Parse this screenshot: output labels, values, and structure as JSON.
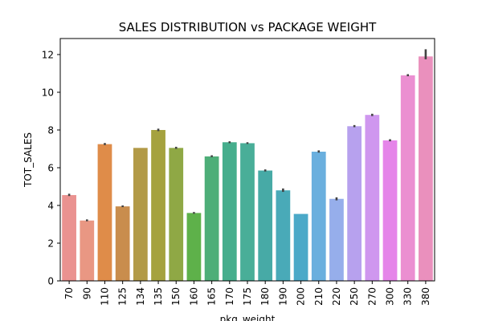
{
  "chart_data": {
    "type": "bar",
    "title": "SALES DISTRIBUTION vs PACKAGE WEIGHT",
    "xlabel": "pkg_weight",
    "ylabel": "TOT_SALES",
    "ylim": [
      0,
      12.85
    ],
    "yticks": [
      0,
      2,
      4,
      6,
      8,
      10,
      12
    ],
    "grid": false,
    "categories": [
      "70",
      "90",
      "110",
      "125",
      "134",
      "135",
      "150",
      "160",
      "165",
      "170",
      "175",
      "180",
      "190",
      "200",
      "210",
      "220",
      "250",
      "270",
      "300",
      "330",
      "380"
    ],
    "values": [
      4.55,
      3.2,
      7.25,
      3.95,
      7.05,
      8.0,
      7.05,
      3.6,
      6.6,
      7.35,
      7.3,
      5.85,
      4.8,
      3.55,
      6.85,
      4.35,
      8.2,
      8.8,
      7.45,
      10.9,
      11.9
    ],
    "errors": [
      [
        4.5,
        4.62
      ],
      [
        3.16,
        3.26
      ],
      [
        7.2,
        7.31
      ],
      [
        3.91,
        4.0
      ],
      null,
      [
        7.94,
        8.07
      ],
      [
        7.0,
        7.11
      ],
      [
        3.56,
        3.65
      ],
      [
        6.56,
        6.66
      ],
      [
        7.3,
        7.4
      ],
      [
        7.26,
        7.35
      ],
      [
        5.8,
        5.91
      ],
      [
        4.72,
        4.9
      ],
      null,
      [
        6.8,
        6.92
      ],
      [
        4.27,
        4.43
      ],
      [
        8.15,
        8.26
      ],
      [
        8.74,
        8.86
      ],
      [
        7.4,
        7.51
      ],
      [
        10.85,
        10.96
      ],
      [
        11.75,
        12.28
      ]
    ],
    "colors": [
      "#ea9290",
      "#e99783",
      "#df8c49",
      "#c98d4d",
      "#b29a47",
      "#a5a23f",
      "#8fa845",
      "#5eb14a",
      "#4eae78",
      "#46ae8d",
      "#49ae98",
      "#47aaa6",
      "#49aab8",
      "#4ba9c8",
      "#6aafde",
      "#96aeeb",
      "#b7a1ee",
      "#cf97ef",
      "#e585e9",
      "#eb8fd1",
      "#ea90bd"
    ]
  }
}
